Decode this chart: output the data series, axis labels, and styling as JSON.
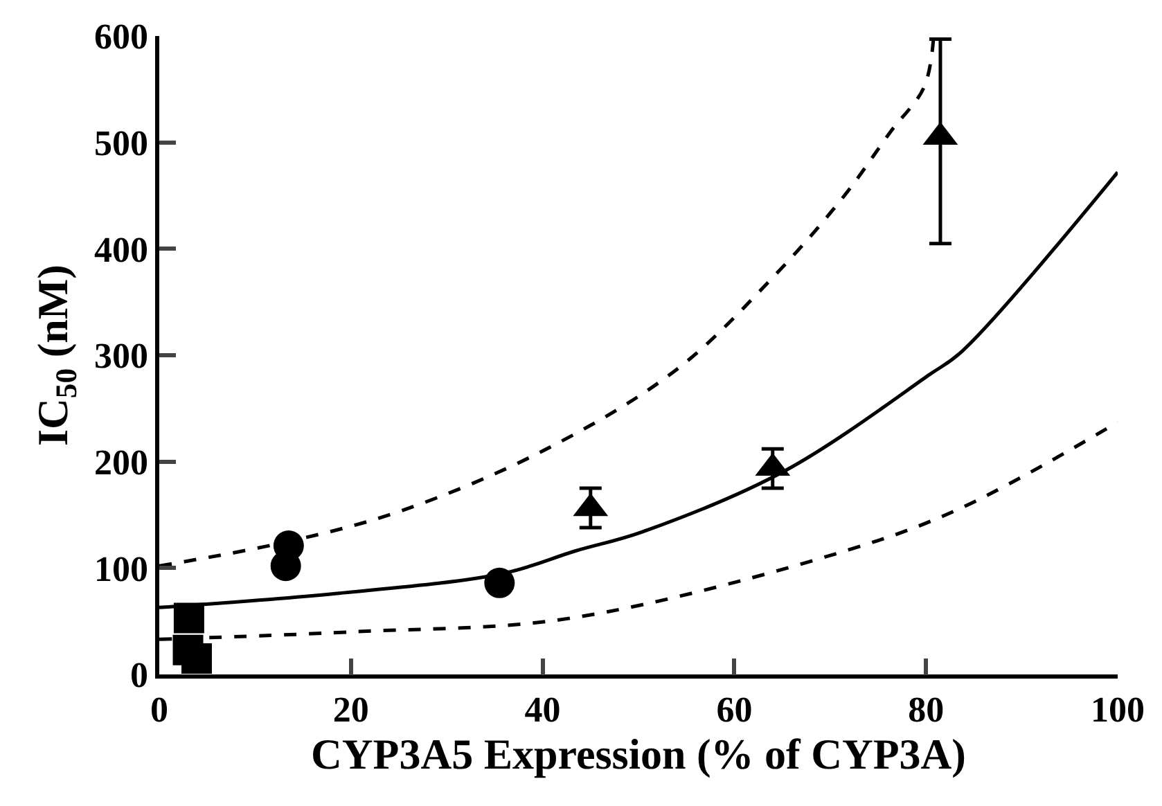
{
  "chart_data": {
    "type": "scatter",
    "xlabel": "CYP3A5 Expression (% of CYP3A)",
    "ylabel": "IC$_{50}$ (nM)",
    "xlim": [
      0,
      100
    ],
    "xticks": [
      0,
      20,
      40,
      60,
      80,
      100
    ],
    "ylim": [
      0,
      600
    ],
    "yticks": [
      0,
      100,
      200,
      300,
      400,
      500,
      600
    ],
    "series": [
      {
        "type": "line",
        "color": "#000000",
        "line_style": "dashed",
        "marker": "none",
        "x": [
          0,
          13,
          25,
          40,
          53.9,
          63.9,
          71.4,
          76.3,
          79.8,
          80.8
        ],
        "values": [
          102,
          124,
          153,
          210,
          286,
          372,
          449,
          510,
          552,
          600
        ]
      },
      {
        "type": "line",
        "color": "#000000",
        "line_style": "solid",
        "marker": "none",
        "x": [
          0,
          18.4,
          35.9,
          43.4,
          50.4,
          65.4,
          80.4,
          83.8,
          100
        ],
        "values": [
          63,
          76,
          95,
          116,
          134,
          192,
          282,
          304,
          472
        ]
      },
      {
        "type": "line",
        "color": "#000000",
        "line_style": "dashed",
        "marker": "none",
        "x": [
          0,
          20,
          43,
          71.9,
          83.8,
          100
        ],
        "values": [
          33,
          40,
          53,
          117,
          157,
          237
        ]
      },
      {
        "color": "#000000",
        "marker": "square",
        "x": [
          3.1,
          3.0,
          3.9
        ],
        "values": [
          53,
          23,
          15
        ]
      },
      {
        "color": "#000000",
        "marker": "circle",
        "x": [
          13.2,
          13.5,
          35.5
        ],
        "values": [
          102,
          121,
          86
        ]
      },
      {
        "color": "#000000",
        "marker": "triangle",
        "x": [
          45,
          64,
          81.5
        ],
        "values": [
          156,
          194,
          505
        ],
        "errors": [
          [
            138,
            175
          ],
          [
            175,
            212
          ],
          [
            405,
            597
          ]
        ]
      }
    ]
  }
}
